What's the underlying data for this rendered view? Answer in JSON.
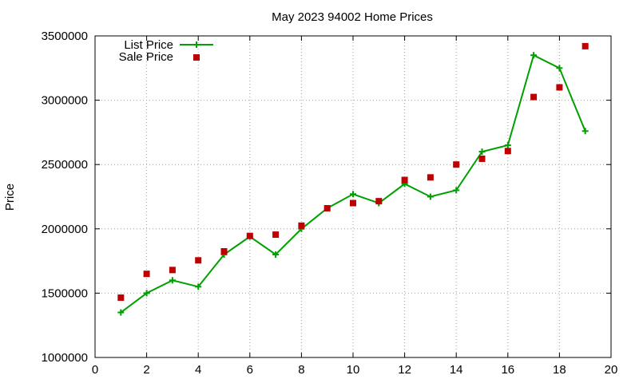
{
  "chart_data": {
    "type": "line",
    "title": "May 2023 94002 Home Prices",
    "xlabel": "",
    "ylabel": "Price",
    "xlim": [
      0,
      20
    ],
    "ylim": [
      1000000,
      3500000
    ],
    "xticks": [
      "0",
      "2",
      "4",
      "6",
      "8",
      "10",
      "12",
      "14",
      "16",
      "18",
      "20"
    ],
    "yticks": [
      "1000000",
      "1500000",
      "2000000",
      "2500000",
      "3000000",
      "3500000"
    ],
    "grid": true,
    "legend": "top-left",
    "series": [
      {
        "name": "List Price",
        "kind": "line",
        "marker": "plus",
        "color": "#00a000",
        "x": [
          1,
          2,
          3,
          4,
          5,
          6,
          7,
          8,
          9,
          10,
          11,
          12,
          13,
          14,
          15,
          16,
          17,
          18,
          19
        ],
        "values": [
          1350000,
          1500000,
          1600000,
          1550000,
          1800000,
          1940000,
          1800000,
          2000000,
          2160000,
          2270000,
          2200000,
          2350000,
          2250000,
          2300000,
          2600000,
          2650000,
          3350000,
          3250000,
          2760000
        ]
      },
      {
        "name": "Sale Price",
        "kind": "scatter",
        "marker": "square",
        "color": "#c00000",
        "x": [
          1,
          2,
          3,
          4,
          5,
          6,
          7,
          8,
          9,
          10,
          11,
          12,
          13,
          14,
          15,
          16,
          17,
          18,
          19
        ],
        "values": [
          1465000,
          1650000,
          1680000,
          1755000,
          1825000,
          1945000,
          1955000,
          2025000,
          2160000,
          2200000,
          2215000,
          2380000,
          2400000,
          2500000,
          2545000,
          2605000,
          3025000,
          3100000,
          3420000
        ]
      }
    ]
  }
}
